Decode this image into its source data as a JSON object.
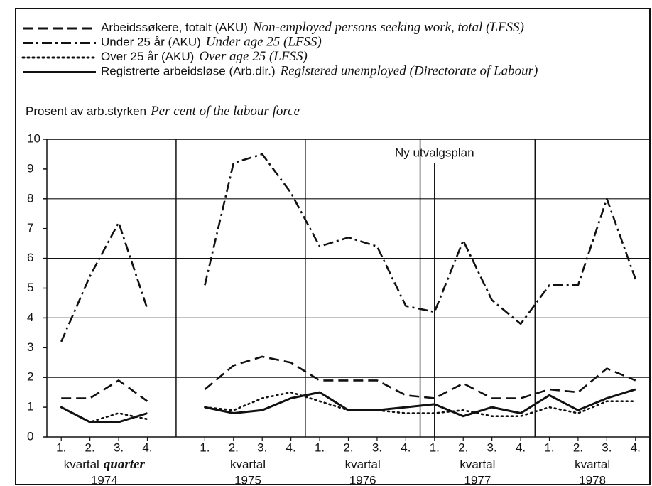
{
  "chart_data": {
    "type": "line",
    "y_label": "Prosent av arb.styrken",
    "y_label_en": "Per cent of the labour force",
    "annotation": "Ny utvalgsplan",
    "categories": [
      "1.",
      "2.",
      "3.",
      "4.",
      null,
      "1.",
      "2.",
      "3.",
      "4.",
      "1.",
      "2.",
      "3.",
      "4.",
      "1.",
      "2.",
      "3.",
      "4.",
      "1.",
      "2.",
      "3.",
      "4."
    ],
    "groups": [
      {
        "label": "kvartal",
        "label_en": "quarter",
        "year": "1974"
      },
      {
        "label": "kvartal",
        "year": "1975"
      },
      {
        "label": "kvartal",
        "year": "1976"
      },
      {
        "label": "kvartal",
        "year": "1977"
      },
      {
        "label": "kvartal",
        "year": "1978"
      }
    ],
    "series": [
      {
        "name": "Arbeidssøkere, totalt (AKU)",
        "name_en": "Non-employed persons seeking work, total (LFSS)",
        "color": "#111",
        "dash": "dashed",
        "values": [
          1.3,
          1.3,
          1.9,
          1.2,
          null,
          1.6,
          2.4,
          2.7,
          2.5,
          1.9,
          1.9,
          1.9,
          1.4,
          1.3,
          1.8,
          1.3,
          1.3,
          1.6,
          1.5,
          2.3,
          1.9
        ]
      },
      {
        "name": "Under 25 år (AKU)",
        "name_en": "Under age 25 (LFSS)",
        "color": "#111",
        "dash": "dashdot",
        "values": [
          3.2,
          5.4,
          7.2,
          4.3,
          null,
          5.1,
          9.2,
          9.5,
          8.2,
          6.4,
          6.7,
          6.4,
          4.4,
          4.2,
          6.6,
          4.6,
          3.8,
          5.1,
          5.1,
          8.0,
          5.3
        ]
      },
      {
        "name": "Over 25 år (AKU)",
        "name_en": "Over age 25 (LFSS)",
        "color": "#111",
        "dash": "dotted",
        "values": [
          1.0,
          0.5,
          0.8,
          0.6,
          null,
          1.0,
          0.9,
          1.3,
          1.5,
          1.2,
          0.9,
          0.9,
          0.8,
          0.8,
          0.9,
          0.7,
          0.7,
          1.0,
          0.8,
          1.2,
          1.2
        ]
      },
      {
        "name": "Registrerte arbeidsløse (Arb.dir.)",
        "name_en": "Registered unemployed (Directorate of Labour)",
        "color": "#111",
        "dash": "solid",
        "values": [
          1.0,
          0.5,
          0.5,
          0.8,
          null,
          1.0,
          0.8,
          0.9,
          1.3,
          1.5,
          0.9,
          0.9,
          1.0,
          1.1,
          0.7,
          1.0,
          0.8,
          1.4,
          0.9,
          1.3,
          1.6
        ]
      }
    ],
    "ylim": [
      0,
      10
    ],
    "yticks": [
      0,
      1,
      2,
      3,
      4,
      5,
      6,
      7,
      8,
      9,
      10
    ],
    "ygrid": [
      2,
      4,
      6,
      8,
      10
    ]
  }
}
